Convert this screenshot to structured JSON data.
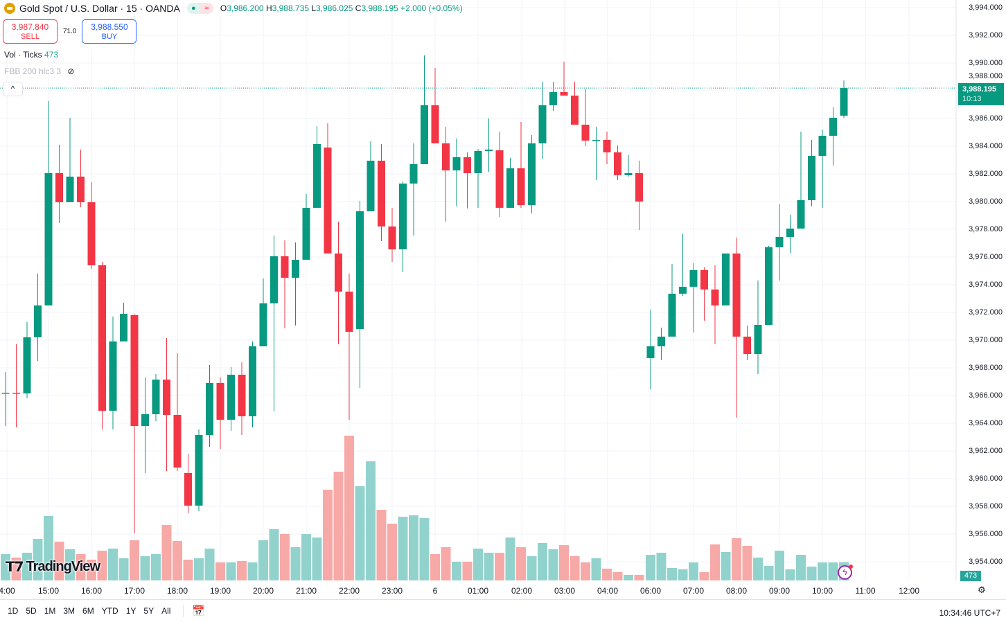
{
  "header": {
    "symbol": "Gold Spot / U.S. Dollar · 15 · OANDA",
    "o_label": "O",
    "o": "3,986.200",
    "h_label": "H",
    "h": "3,988.735",
    "l_label": "L",
    "l": "3,986.025",
    "c_label": "C",
    "c": "3,988.195",
    "change": "+2.000 (+0.05%)"
  },
  "trade": {
    "sell_price": "3,987.840",
    "sell_label": "SELL",
    "spread": "71.0",
    "buy_price": "3,988.550",
    "buy_label": "BUY"
  },
  "indicators": {
    "vol_label": "Vol · Ticks",
    "vol_value": "473",
    "fbb_label": "FBB 200 hlc3 3"
  },
  "collapse_icon": "^",
  "price_axis": {
    "labels": [
      "3,994.000",
      "3,992.000",
      "3,990.000",
      "3,988.000",
      "3,986.000",
      "3,984.000",
      "3,982.000",
      "3,980.000",
      "3,978.000",
      "3,976.000",
      "3,974.000",
      "3,972.000",
      "3,970.000",
      "3,968.000",
      "3,966.000",
      "3,964.000",
      "3,962.000",
      "3,960.000",
      "3,958.000",
      "3,956.000",
      "3,954.000"
    ],
    "current_price": "3,988.195",
    "countdown": "10:13",
    "volume_badge": "473"
  },
  "time_axis": [
    "4:00",
    "15:00",
    "16:00",
    "17:00",
    "18:00",
    "19:00",
    "20:00",
    "21:00",
    "22:00",
    "23:00",
    "6",
    "01:00",
    "02:00",
    "03:00",
    "04:00",
    "06:00",
    "07:00",
    "08:00",
    "09:00",
    "10:00",
    "11:00",
    "12:00"
  ],
  "bottom": {
    "ranges": [
      "1D",
      "5D",
      "1M",
      "3M",
      "6M",
      "YTD",
      "1Y",
      "5Y",
      "All"
    ],
    "clock": "10:34:46 UTC+7"
  },
  "brand": "TradingView",
  "colors": {
    "up": "#089981",
    "down": "#f23645",
    "vol_up": "#92d2cc",
    "vol_down": "#f7a9a7"
  },
  "chart_data": {
    "type": "candlestick",
    "price_range": [
      3953,
      3994.55
    ],
    "ohlc": [
      [
        3966.2,
        3967.7,
        3963.8,
        3966.2
      ],
      [
        3966.2,
        3969.7,
        3963.7,
        3966.15
      ],
      [
        3966.15,
        3971.3,
        3965.8,
        3970.2
      ],
      [
        3970.2,
        3974.8,
        3968.5,
        3972.5
      ],
      [
        3972.5,
        3987.25,
        3972.5,
        3982.05
      ],
      [
        3982.05,
        3984.1,
        3978.45,
        3979.95
      ],
      [
        3979.95,
        3986.05,
        3979.95,
        3981.8
      ],
      [
        3981.8,
        3983.75,
        3979.6,
        3979.95
      ],
      [
        3979.95,
        3981.4,
        3975.15,
        3975.4
      ],
      [
        3975.4,
        3975.65,
        3963.55,
        3964.9
      ],
      [
        3964.9,
        3971.7,
        3963.55,
        3969.9
      ],
      [
        3969.9,
        3972.7,
        3969.9,
        3971.9
      ],
      [
        3971.8,
        3971.9,
        3956.05,
        3963.8
      ],
      [
        3963.8,
        3967.3,
        3960.4,
        3964.65
      ],
      [
        3964.65,
        3967.55,
        3964.15,
        3967.15
      ],
      [
        3967.15,
        3970.15,
        3960.55,
        3964.6
      ],
      [
        3964.6,
        3969.05,
        3960.55,
        3960.8
      ],
      [
        3960.4,
        3961.8,
        3957.5,
        3958.05
      ],
      [
        3958.05,
        3963.55,
        3957.65,
        3963.15
      ],
      [
        3963.15,
        3968.2,
        3962.3,
        3966.9
      ],
      [
        3966.9,
        3967.3,
        3962.15,
        3964.25
      ],
      [
        3964.25,
        3968.05,
        3963.45,
        3967.5
      ],
      [
        3967.5,
        3968.4,
        3963.15,
        3964.5
      ],
      [
        3964.5,
        3969.9,
        3963.7,
        3969.55
      ],
      [
        3969.55,
        3974.45,
        3969.65,
        3972.65
      ],
      [
        3972.65,
        3977.55,
        3964.85,
        3976.05
      ],
      [
        3976.05,
        3977.2,
        3970.85,
        3974.5
      ],
      [
        3974.5,
        3977.05,
        3971.05,
        3975.8
      ],
      [
        3975.8,
        3980.55,
        3975.8,
        3979.55
      ],
      [
        3979.55,
        3985.45,
        3979.55,
        3984.15
      ],
      [
        3983.9,
        3985.65,
        3976.25,
        3976.25
      ],
      [
        3976.25,
        3978.55,
        3969.7,
        3973.5
      ],
      [
        3973.5,
        3974.8,
        3964.25,
        3970.6
      ],
      [
        3970.8,
        3980.05,
        3966.55,
        3979.3
      ],
      [
        3979.3,
        3984.35,
        3979.3,
        3982.95
      ],
      [
        3982.95,
        3984.15,
        3977.15,
        3978.2
      ],
      [
        3978.2,
        3979.55,
        3975.65,
        3976.55
      ],
      [
        3976.55,
        3981.45,
        3974.9,
        3981.3
      ],
      [
        3981.3,
        3984.2,
        3977.55,
        3982.7
      ],
      [
        3982.7,
        3990.55,
        3982.7,
        3986.95
      ],
      [
        3986.95,
        3989.65,
        3984.2,
        3984.2
      ],
      [
        3984.2,
        3985.4,
        3978.55,
        3982.25
      ],
      [
        3982.25,
        3984.55,
        3979.65,
        3983.2
      ],
      [
        3983.2,
        3983.55,
        3979.5,
        3982.05
      ],
      [
        3982.05,
        3983.8,
        3979.55,
        3983.65
      ],
      [
        3983.65,
        3986.0,
        3982.15,
        3983.75
      ],
      [
        3983.7,
        3985.05,
        3978.9,
        3979.55
      ],
      [
        3979.55,
        3983.15,
        3979.55,
        3982.4
      ],
      [
        3982.4,
        3985.75,
        3979.55,
        3979.75
      ],
      [
        3979.75,
        3984.8,
        3979.15,
        3984.2
      ],
      [
        3984.2,
        3988.65,
        3983.05,
        3986.95
      ],
      [
        3986.95,
        3988.65,
        3986.55,
        3987.9
      ],
      [
        3987.9,
        3990.1,
        3987.65,
        3987.65
      ],
      [
        3987.65,
        3988.65,
        3985.55,
        3985.55
      ],
      [
        3985.55,
        3988.15,
        3984.0,
        3984.4
      ],
      [
        3984.4,
        3985.4,
        3981.55,
        3984.45
      ],
      [
        3984.45,
        3985.05,
        3982.7,
        3983.55
      ],
      [
        3983.55,
        3984.05,
        3981.55,
        3981.9
      ],
      [
        3981.9,
        3983.35,
        3981.8,
        3982.05
      ],
      [
        3982.05,
        3982.95,
        3977.95,
        3980.0
      ],
      [
        3968.7,
        3972.2,
        3966.45,
        3969.55
      ],
      [
        3969.55,
        3970.9,
        3968.55,
        3970.25
      ],
      [
        3970.25,
        3975.5,
        3970.25,
        3973.35
      ],
      [
        3973.35,
        3977.65,
        3973.2,
        3973.85
      ],
      [
        3973.85,
        3975.55,
        3970.55,
        3975.05
      ],
      [
        3975.05,
        3975.25,
        3971.4,
        3973.65
      ],
      [
        3973.65,
        3975.4,
        3969.7,
        3972.5
      ],
      [
        3972.5,
        3976.25,
        3972.5,
        3976.25
      ],
      [
        3976.25,
        3977.4,
        3964.4,
        3970.25
      ],
      [
        3970.25,
        3971.05,
        3968.55,
        3969.0
      ],
      [
        3969.0,
        3974.3,
        3967.55,
        3971.1
      ],
      [
        3971.1,
        3976.8,
        3971.1,
        3976.7
      ],
      [
        3976.7,
        3979.8,
        3974.3,
        3977.45
      ],
      [
        3977.45,
        3979.05,
        3976.3,
        3978.05
      ],
      [
        3978.05,
        3985.05,
        3978.05,
        3980.1
      ],
      [
        3980.1,
        3984.45,
        3979.65,
        3983.3
      ],
      [
        3983.3,
        3985.2,
        3979.55,
        3984.75
      ],
      [
        3984.75,
        3986.8,
        3982.6,
        3986.05
      ],
      [
        3986.2,
        3988.735,
        3986.025,
        3988.195
      ]
    ],
    "volume": [
      684,
      594,
      720,
      1080,
      1674,
      1008,
      810,
      684,
      540,
      774,
      828,
      576,
      1044,
      630,
      684,
      1440,
      1026,
      540,
      576,
      828,
      468,
      468,
      504,
      468,
      1044,
      1332,
      1206,
      864,
      1206,
      1116,
      2358,
      2826,
      3762,
      2448,
      3096,
      1836,
      1476,
      1656,
      1692,
      1620,
      684,
      864,
      486,
      486,
      828,
      720,
      720,
      1116,
      864,
      630,
      972,
      810,
      918,
      630,
      468,
      576,
      306,
      216,
      144,
      144,
      666,
      720,
      324,
      288,
      468,
      216,
      936,
      738,
      1098,
      900,
      594,
      378,
      774,
      288,
      666,
      360,
      468,
      468,
      473
    ]
  }
}
